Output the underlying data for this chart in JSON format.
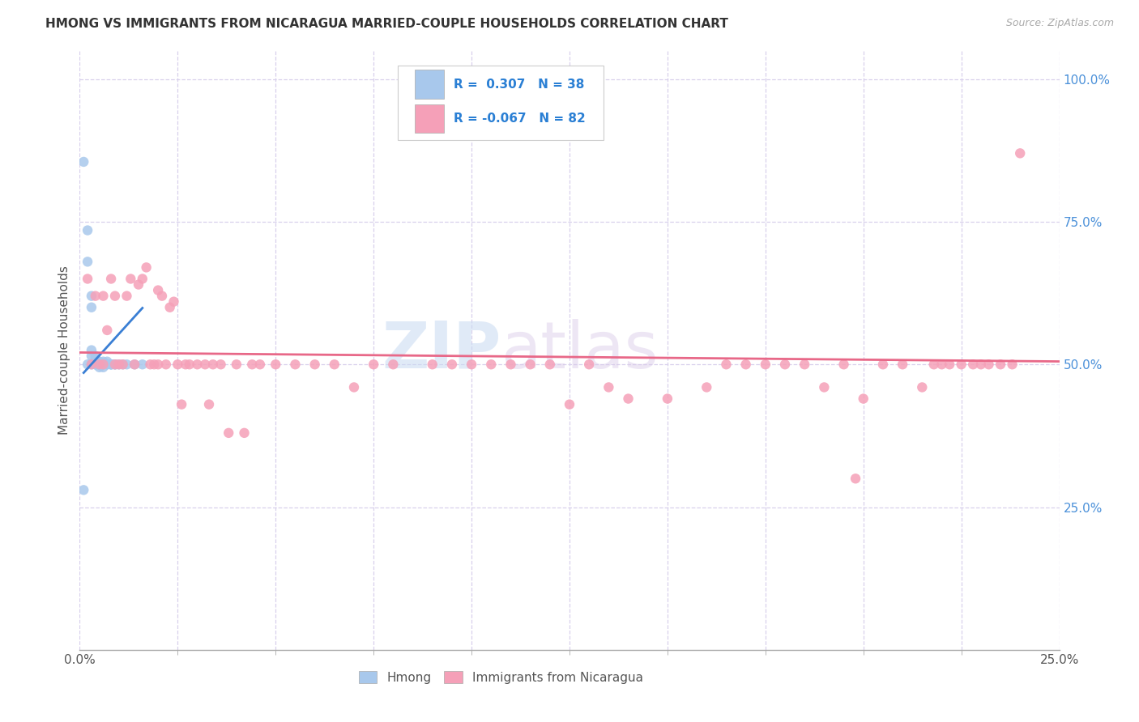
{
  "title": "HMONG VS IMMIGRANTS FROM NICARAGUA MARRIED-COUPLE HOUSEHOLDS CORRELATION CHART",
  "source": "Source: ZipAtlas.com",
  "ylabel": "Married-couple Households",
  "xlim": [
    0.0,
    0.25
  ],
  "ylim": [
    0.0,
    1.05
  ],
  "xtick_left_label": "0.0%",
  "xtick_right_label": "25.0%",
  "ytick_labels_right": [
    "25.0%",
    "50.0%",
    "75.0%",
    "100.0%"
  ],
  "ytick_vals_right": [
    0.25,
    0.5,
    0.75,
    1.0
  ],
  "legend_labels": [
    "Hmong",
    "Immigrants from Nicaragua"
  ],
  "hmong_R": 0.307,
  "hmong_N": 38,
  "nicaragua_R": -0.067,
  "nicaragua_N": 82,
  "hmong_color": "#a8c8ec",
  "nicaragua_color": "#f5a0b8",
  "hmong_line_color": "#3a7fd4",
  "nicaragua_line_color": "#e86888",
  "watermark_zip": "ZIP",
  "watermark_atlas": "atlas",
  "background_color": "#ffffff",
  "grid_color": "#d8d0ec",
  "hmong_x": [
    0.001,
    0.001,
    0.002,
    0.002,
    0.002,
    0.003,
    0.003,
    0.003,
    0.003,
    0.003,
    0.004,
    0.004,
    0.004,
    0.004,
    0.004,
    0.005,
    0.005,
    0.005,
    0.005,
    0.005,
    0.005,
    0.006,
    0.006,
    0.006,
    0.006,
    0.007,
    0.007,
    0.007,
    0.008,
    0.008,
    0.008,
    0.009,
    0.009,
    0.01,
    0.011,
    0.012,
    0.014,
    0.016
  ],
  "hmong_y": [
    0.855,
    0.28,
    0.735,
    0.68,
    0.5,
    0.5,
    0.515,
    0.525,
    0.6,
    0.62,
    0.5,
    0.5,
    0.505,
    0.51,
    0.515,
    0.5,
    0.495,
    0.5,
    0.5,
    0.5,
    0.505,
    0.5,
    0.505,
    0.5,
    0.495,
    0.5,
    0.5,
    0.505,
    0.5,
    0.5,
    0.5,
    0.5,
    0.5,
    0.5,
    0.5,
    0.5,
    0.5,
    0.5
  ],
  "nicaragua_x": [
    0.002,
    0.003,
    0.004,
    0.005,
    0.006,
    0.006,
    0.007,
    0.008,
    0.009,
    0.009,
    0.01,
    0.011,
    0.012,
    0.013,
    0.014,
    0.015,
    0.016,
    0.017,
    0.018,
    0.019,
    0.02,
    0.02,
    0.021,
    0.022,
    0.023,
    0.024,
    0.025,
    0.026,
    0.027,
    0.028,
    0.03,
    0.032,
    0.033,
    0.034,
    0.036,
    0.038,
    0.04,
    0.042,
    0.044,
    0.046,
    0.05,
    0.055,
    0.06,
    0.065,
    0.07,
    0.075,
    0.08,
    0.09,
    0.095,
    0.1,
    0.105,
    0.11,
    0.115,
    0.12,
    0.125,
    0.13,
    0.135,
    0.14,
    0.15,
    0.16,
    0.165,
    0.17,
    0.175,
    0.18,
    0.185,
    0.19,
    0.195,
    0.198,
    0.2,
    0.205,
    0.21,
    0.215,
    0.218,
    0.22,
    0.222,
    0.225,
    0.228,
    0.23,
    0.232,
    0.235,
    0.238,
    0.24
  ],
  "nicaragua_y": [
    0.65,
    0.5,
    0.62,
    0.5,
    0.5,
    0.62,
    0.56,
    0.65,
    0.5,
    0.62,
    0.5,
    0.5,
    0.62,
    0.65,
    0.5,
    0.64,
    0.65,
    0.67,
    0.5,
    0.5,
    0.5,
    0.63,
    0.62,
    0.5,
    0.6,
    0.61,
    0.5,
    0.43,
    0.5,
    0.5,
    0.5,
    0.5,
    0.43,
    0.5,
    0.5,
    0.38,
    0.5,
    0.38,
    0.5,
    0.5,
    0.5,
    0.5,
    0.5,
    0.5,
    0.46,
    0.5,
    0.5,
    0.5,
    0.5,
    0.5,
    0.5,
    0.5,
    0.5,
    0.5,
    0.43,
    0.5,
    0.46,
    0.44,
    0.44,
    0.46,
    0.5,
    0.5,
    0.5,
    0.5,
    0.5,
    0.46,
    0.5,
    0.3,
    0.44,
    0.5,
    0.5,
    0.46,
    0.5,
    0.5,
    0.5,
    0.5,
    0.5,
    0.5,
    0.5,
    0.5,
    0.5,
    0.87
  ]
}
